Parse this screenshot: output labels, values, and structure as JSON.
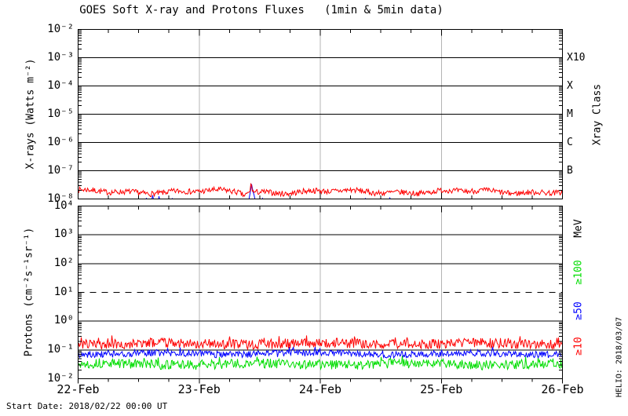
{
  "title": "GOES Soft X-ray and Protons Fluxes   (1min & 5min data)",
  "footer": {
    "start_date": "Start Date: 2018/02/22 00:00 UT"
  },
  "watermark": "HELIO: 2018/03/07",
  "colors": {
    "xray_long": "#ff0000",
    "xray_short": "#0000ff",
    "protons_ge10": "#ff0000",
    "protons_ge50": "#0000ff",
    "protons_ge100": "#00dd00",
    "day_grid": "#b4b4b4",
    "frame": "#000000"
  },
  "axes": {
    "x_labels": [
      "22-Feb",
      "23-Feb",
      "24-Feb",
      "25-Feb",
      "26-Feb"
    ],
    "xray": {
      "title": "X-rays (Watts m⁻²)",
      "ticks": [
        "10⁻²",
        "10⁻³",
        "10⁻⁴",
        "10⁻⁵",
        "10⁻⁶",
        "10⁻⁷",
        "10⁻⁸"
      ],
      "right_title": "Xray Class",
      "class_labels": [
        "X10",
        "X",
        "M",
        "C",
        "B"
      ]
    },
    "proton": {
      "title": "Protons (cm⁻²s⁻¹sr⁻¹)",
      "ticks": [
        "10⁴",
        "10³",
        "10²",
        "10¹",
        "10⁰",
        "10⁻¹",
        "10⁻²"
      ],
      "right_title": "MeV",
      "energy_labels": [
        {
          "label": "≥100",
          "color": "#00dd00"
        },
        {
          "label": "≥50",
          "color": "#0000ff"
        },
        {
          "label": "≥10",
          "color": "#ff0000"
        }
      ]
    }
  },
  "chart_data": [
    {
      "type": "line",
      "panel": "X-rays",
      "ylabel": "X-rays (Watts m-2)",
      "yscale": "log",
      "ylim": [
        1e-08,
        0.01
      ],
      "x_range_days": [
        0,
        4
      ],
      "x_start": "2018/02/22 00:00 UT",
      "x_ticklabels": [
        "22-Feb",
        "23-Feb",
        "24-Feb",
        "25-Feb",
        "26-Feb"
      ],
      "right_axis_labels": [
        {
          "label": "X10",
          "flux": 0.001
        },
        {
          "label": "X",
          "flux": 0.0001
        },
        {
          "label": "M",
          "flux": 1e-05
        },
        {
          "label": "C",
          "flux": 1e-06
        },
        {
          "label": "B",
          "flux": 1e-07
        }
      ],
      "grid": {
        "vertical_day_lines": [
          1,
          2,
          3
        ],
        "horizontal_decade_lines": "solid"
      },
      "series": [
        {
          "name": "xray-long (red)",
          "color": "#ff0000",
          "baseline_flux": 1.8e-08,
          "noise_decades": 0.1,
          "flare": {
            "day": 1.43,
            "peak_flux": 3.4e-08
          },
          "dip": {
            "day": 1.37,
            "depth_decades": 0.1
          }
        },
        {
          "name": "xray-short (blue)",
          "color": "#0000ff",
          "baseline_flux": 4e-09,
          "note": "baseline below 1e-8 scale bottom",
          "spikes": [
            {
              "start": 0.545,
              "peak": 0.565,
              "end": 0.585,
              "peak_flux": 1.2e-08
            },
            {
              "start": 0.595,
              "peak": 0.615,
              "end": 0.645,
              "peak_flux": 1.4e-08
            },
            {
              "start": 0.65,
              "peak": 0.668,
              "end": 0.7,
              "peak_flux": 1.25e-08
            },
            {
              "start": 0.768,
              "peak": 0.78,
              "end": 0.795,
              "peak_flux": 1.25e-08
            },
            {
              "start": 1.398,
              "peak": 1.432,
              "end": 1.502,
              "peak_flux": 3.3e-08
            },
            {
              "start": 1.505,
              "peak": 1.52,
              "end": 1.558,
              "peak_flux": 1.15e-08
            },
            {
              "start": 2.358,
              "peak": 2.372,
              "end": 2.39,
              "peak_flux": 1.2e-08
            },
            {
              "start": 2.558,
              "peak": 2.575,
              "end": 2.6,
              "peak_flux": 1.25e-08
            }
          ]
        }
      ]
    },
    {
      "type": "line",
      "panel": "Protons",
      "ylabel": "Protons (cm-2 s-1 sr-1)",
      "yscale": "log",
      "ylim": [
        0.01,
        10000.0
      ],
      "x_range_days": [
        0,
        4
      ],
      "x_ticklabels": [
        "22-Feb",
        "23-Feb",
        "24-Feb",
        "25-Feb",
        "26-Feb"
      ],
      "threshold": {
        "flux": 10,
        "style": "dashed"
      },
      "grid": {
        "vertical_day_lines": [
          1,
          2,
          3
        ],
        "horizontal_decade_lines": "solid"
      },
      "series": [
        {
          "name": "protons ≥10 MeV",
          "color": "#ff0000",
          "baseline_flux": 0.165,
          "noise_decades": 0.17
        },
        {
          "name": "protons ≥50 MeV",
          "color": "#0000ff",
          "baseline_flux": 0.074,
          "noise_decades": 0.12
        },
        {
          "name": "protons ≥100 MeV",
          "color": "#00dd00",
          "baseline_flux": 0.032,
          "noise_decades": 0.17
        }
      ]
    }
  ]
}
